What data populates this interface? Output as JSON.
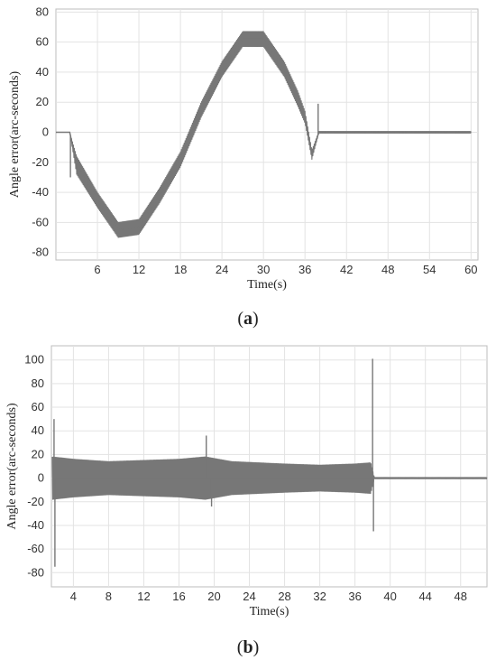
{
  "captions": {
    "a": "a",
    "b": "b"
  },
  "chart_data": [
    {
      "type": "line",
      "panel": "a",
      "title": "",
      "xlabel": "Time(s)",
      "ylabel": "Angle error(arc-seconds)",
      "xlim": [
        0,
        61
      ],
      "ylim": [
        -85,
        82
      ],
      "xticks": [
        6,
        12,
        18,
        24,
        30,
        36,
        42,
        48,
        54,
        60
      ],
      "yticks": [
        -80,
        -60,
        -40,
        -20,
        0,
        20,
        40,
        60,
        80
      ],
      "grid": true,
      "line_color": "#777777",
      "x": [
        0,
        2,
        3,
        6,
        9,
        12,
        15,
        18,
        21,
        24,
        27,
        30,
        33,
        35,
        36,
        37,
        38,
        39,
        42,
        48,
        54,
        60
      ],
      "y": [
        0,
        0,
        -22,
        -45,
        -65,
        -63,
        -42,
        -18,
        15,
        42,
        62,
        62,
        42,
        22,
        10,
        -15,
        0,
        0,
        0,
        0,
        0,
        0
      ],
      "band": [
        0,
        0,
        6,
        5,
        5,
        5,
        5,
        5,
        5,
        5,
        5,
        5,
        5,
        5,
        4,
        3,
        0.6,
        0.6,
        0.6,
        0.6,
        0.6,
        0.6
      ],
      "spikes": [
        {
          "x": 2.1,
          "y": -30
        },
        {
          "x": 37.9,
          "y": 19
        }
      ]
    },
    {
      "type": "line",
      "panel": "b",
      "title": "",
      "xlabel": "Time(s)",
      "ylabel": "Angle error(arc-seconds)",
      "xlim": [
        1.5,
        51
      ],
      "ylim": [
        -92,
        112
      ],
      "xticks": [
        4,
        8,
        12,
        16,
        20,
        24,
        28,
        32,
        36,
        40,
        44,
        48
      ],
      "yticks": [
        -80,
        -60,
        -40,
        -20,
        0,
        20,
        40,
        60,
        80,
        100
      ],
      "grid": true,
      "line_color": "#777777",
      "x": [
        1.6,
        4,
        8,
        12,
        16,
        19,
        22,
        28,
        32,
        36,
        37.8,
        38.2,
        42,
        48,
        51
      ],
      "y": [
        0,
        0,
        0,
        0,
        0,
        0,
        0,
        0,
        0,
        0,
        0,
        0,
        0,
        0,
        0
      ],
      "band": [
        18,
        16,
        14,
        15,
        16,
        18,
        14,
        12,
        11,
        12,
        13,
        0.6,
        0.6,
        0.6,
        0.6
      ],
      "spikes": [
        {
          "x": 1.8,
          "y": 50
        },
        {
          "x": 1.9,
          "y": -75
        },
        {
          "x": 19.1,
          "y": 36
        },
        {
          "x": 19.7,
          "y": -24
        },
        {
          "x": 38,
          "y": 101
        },
        {
          "x": 38.1,
          "y": -45
        }
      ]
    }
  ]
}
